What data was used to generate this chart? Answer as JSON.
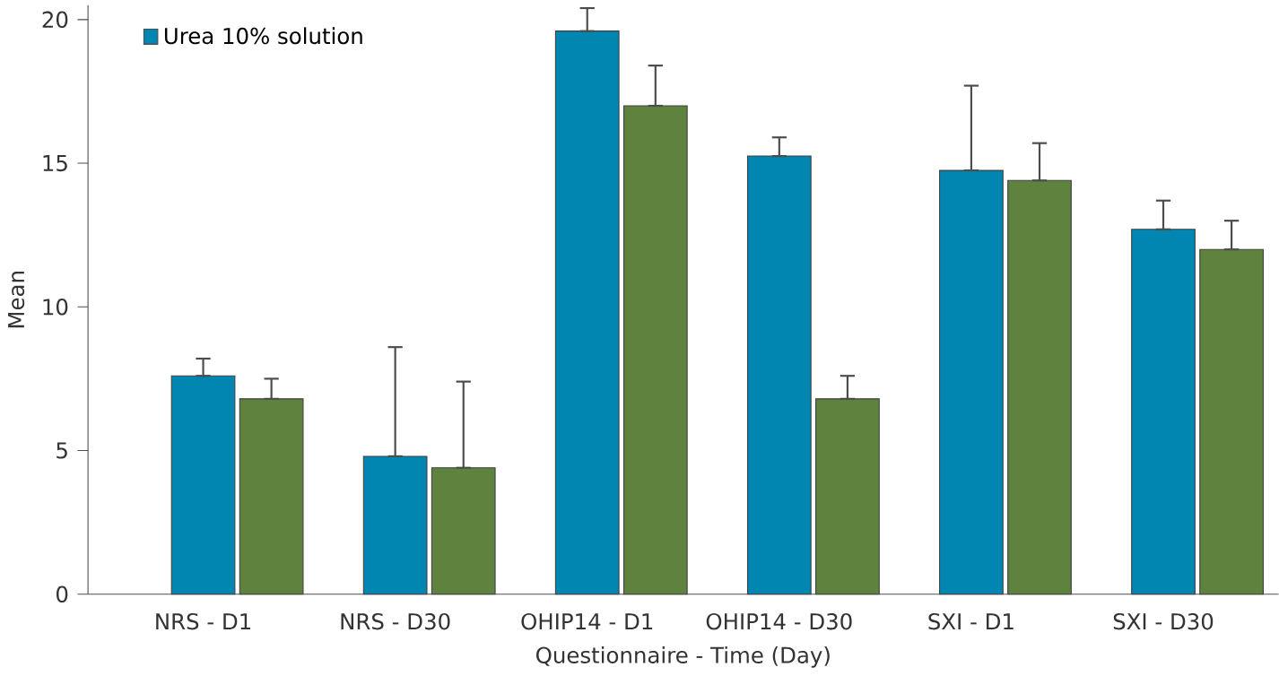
{
  "chart_data": {
    "type": "bar",
    "xlabel": "Questionnaire - Time (Day)",
    "ylabel": "Mean",
    "categories": [
      "NRS - D1",
      "NRS - D30",
      "OHIP14 - D1",
      "OHIP14 - D30",
      "SXI - D1",
      "SXI - D30"
    ],
    "series": [
      {
        "name": "Urea 10% solution",
        "color": "#0086b0",
        "values": [
          7.6,
          4.8,
          19.6,
          15.25,
          14.75,
          12.7
        ],
        "errors": [
          [
            7.6,
            8.2
          ],
          [
            4.8,
            8.6
          ],
          [
            19.6,
            20.4
          ],
          [
            15.25,
            15.9
          ],
          [
            14.75,
            17.7
          ],
          [
            12.7,
            13.7
          ]
        ]
      },
      {
        "color": "#5f823f",
        "values": [
          6.8,
          4.4,
          17.0,
          6.8,
          14.4,
          12.0
        ],
        "errors": [
          [
            6.8,
            7.5
          ],
          [
            4.4,
            7.4
          ],
          [
            17.0,
            18.4
          ],
          [
            6.8,
            7.6
          ],
          [
            14.4,
            15.7
          ],
          [
            12.0,
            13.0
          ]
        ]
      }
    ],
    "ylim": [
      0,
      20.5
    ],
    "yticks": [
      0,
      5,
      10,
      15,
      20
    ],
    "grid": false,
    "legend": "top left"
  }
}
